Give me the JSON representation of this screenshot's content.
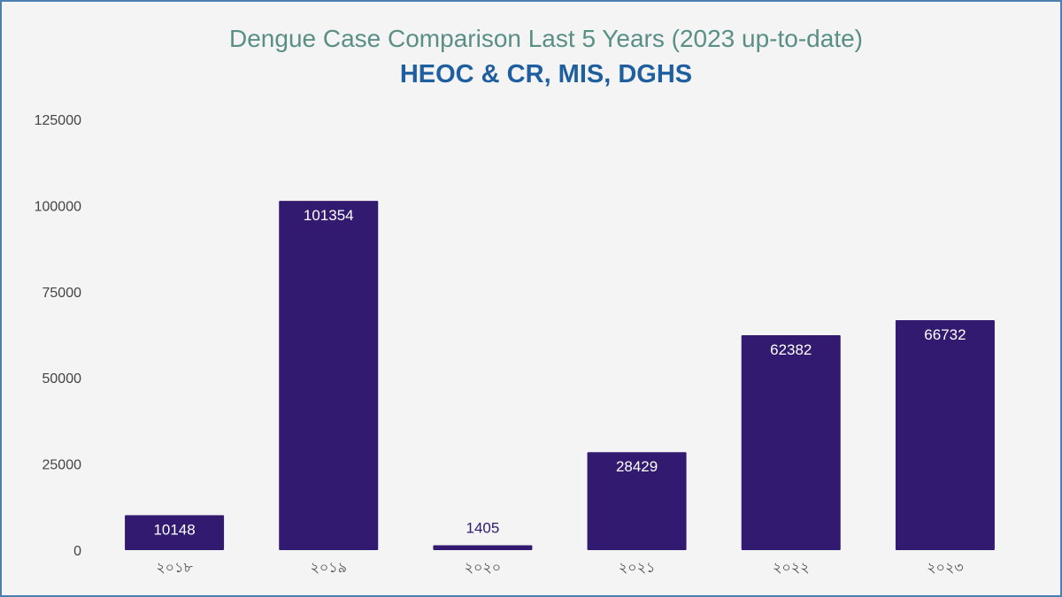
{
  "chart_data": {
    "type": "bar",
    "title": "Dengue Case Comparison Last 5 Years (2023 up-to-date)",
    "subtitle": "HEOC & CR, MIS, DGHS",
    "categories": [
      "২০১৮",
      "২০১৯",
      "২০২০",
      "২০২১",
      "২০২২",
      "২০২৩"
    ],
    "values": [
      10148,
      101354,
      1405,
      28429,
      62382,
      66732
    ],
    "yticks": [
      0,
      25000,
      50000,
      75000,
      100000,
      125000
    ],
    "ylim": [
      0,
      125000
    ],
    "xlabel": "",
    "ylabel": "",
    "grid": false,
    "legend": "none",
    "bar_color": "#321a70",
    "label_inside_color": "#ffffff",
    "label_outside_color": "#321a70"
  }
}
